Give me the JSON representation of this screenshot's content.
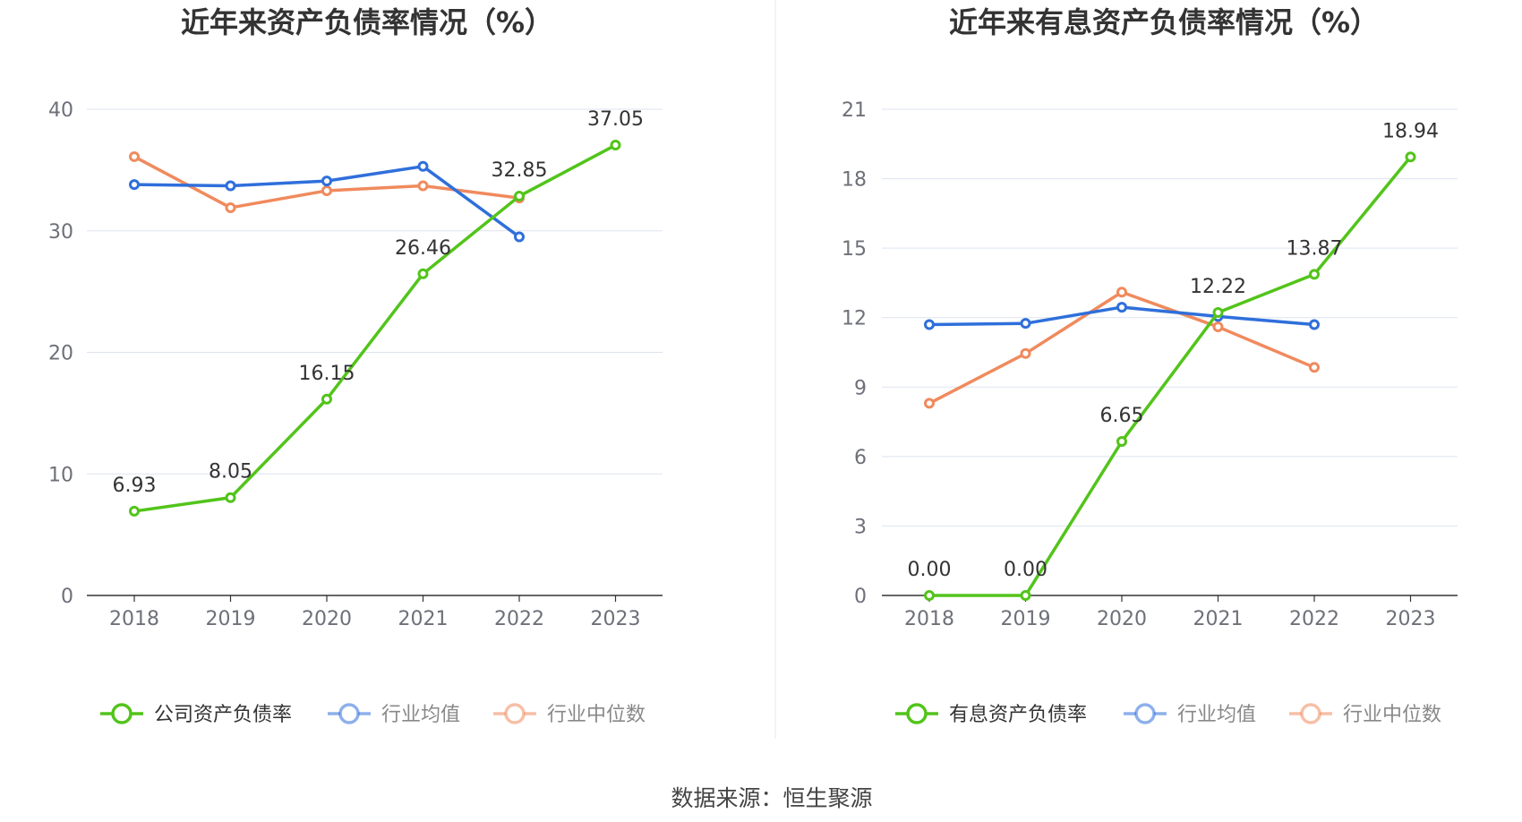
{
  "source": "数据来源：恒生聚源",
  "colors": {
    "company": "#52c41a",
    "avg": "#2f6fdb",
    "median": "#f08a5d",
    "grid": "#dde3f0",
    "axis": "#333333"
  },
  "chart_data": [
    {
      "type": "line",
      "title": "近年来资产负债率情况（%）",
      "categories": [
        "2018",
        "2019",
        "2020",
        "2021",
        "2022",
        "2023"
      ],
      "ylim": [
        0,
        40
      ],
      "yticks": [
        0,
        10,
        20,
        30,
        40
      ],
      "grid": true,
      "legend_position": "bottom",
      "series": [
        {
          "name": "公司资产负债率",
          "color": "#52c41a",
          "values": [
            6.93,
            8.05,
            16.15,
            26.46,
            32.85,
            37.05
          ],
          "labels": [
            "6.93",
            "8.05",
            "16.15",
            "26.46",
            "32.85",
            "37.05"
          ]
        },
        {
          "name": "行业均值",
          "color": "#2f6fdb",
          "values": [
            33.8,
            33.7,
            34.1,
            35.3,
            29.5,
            null
          ]
        },
        {
          "name": "行业中位数",
          "color": "#f08a5d",
          "values": [
            36.1,
            31.9,
            33.3,
            33.7,
            32.7,
            null
          ]
        }
      ]
    },
    {
      "type": "line",
      "title": "近年来有息资产负债率情况（%）",
      "categories": [
        "2018",
        "2019",
        "2020",
        "2021",
        "2022",
        "2023"
      ],
      "ylim": [
        0,
        21
      ],
      "yticks": [
        0,
        3,
        6,
        9,
        12,
        15,
        18,
        21
      ],
      "grid": true,
      "legend_position": "bottom",
      "series": [
        {
          "name": "有息资产负债率",
          "color": "#52c41a",
          "values": [
            0.0,
            0.0,
            6.65,
            12.22,
            13.87,
            18.94
          ],
          "labels": [
            "0.00",
            "0.00",
            "6.65",
            "12.22",
            "13.87",
            "18.94"
          ]
        },
        {
          "name": "行业均值",
          "color": "#2f6fdb",
          "values": [
            11.7,
            11.75,
            12.45,
            12.05,
            11.7,
            null
          ]
        },
        {
          "name": "行业中位数",
          "color": "#f08a5d",
          "values": [
            8.3,
            10.45,
            13.1,
            11.6,
            9.85,
            null
          ]
        }
      ]
    }
  ]
}
